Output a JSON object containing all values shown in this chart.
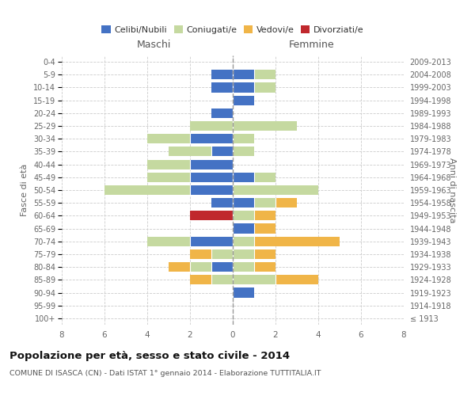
{
  "age_groups": [
    "100+",
    "95-99",
    "90-94",
    "85-89",
    "80-84",
    "75-79",
    "70-74",
    "65-69",
    "60-64",
    "55-59",
    "50-54",
    "45-49",
    "40-44",
    "35-39",
    "30-34",
    "25-29",
    "20-24",
    "15-19",
    "10-14",
    "5-9",
    "0-4"
  ],
  "year_labels": [
    "≤ 1913",
    "1914-1918",
    "1919-1923",
    "1924-1928",
    "1929-1933",
    "1934-1938",
    "1939-1943",
    "1944-1948",
    "1949-1953",
    "1954-1958",
    "1959-1963",
    "1964-1968",
    "1969-1973",
    "1974-1978",
    "1979-1983",
    "1984-1988",
    "1989-1993",
    "1994-1998",
    "1999-2003",
    "2004-2008",
    "2009-2013"
  ],
  "male": {
    "celibi": [
      0,
      0,
      0,
      0,
      1,
      0,
      2,
      0,
      0,
      1,
      2,
      2,
      2,
      1,
      2,
      0,
      1,
      0,
      1,
      1,
      0
    ],
    "coniugati": [
      0,
      0,
      0,
      1,
      1,
      1,
      2,
      0,
      0,
      0,
      4,
      2,
      2,
      2,
      2,
      2,
      0,
      0,
      0,
      0,
      0
    ],
    "vedovi": [
      0,
      0,
      0,
      1,
      1,
      1,
      0,
      0,
      0,
      0,
      0,
      0,
      0,
      0,
      0,
      0,
      0,
      0,
      0,
      0,
      0
    ],
    "divorziati": [
      0,
      0,
      0,
      0,
      0,
      0,
      0,
      0,
      2,
      0,
      0,
      0,
      0,
      0,
      0,
      0,
      0,
      0,
      0,
      0,
      0
    ]
  },
  "female": {
    "nubili": [
      0,
      0,
      1,
      0,
      0,
      0,
      0,
      1,
      0,
      1,
      0,
      1,
      0,
      0,
      0,
      0,
      0,
      1,
      1,
      1,
      0
    ],
    "coniugate": [
      0,
      0,
      0,
      2,
      1,
      1,
      1,
      0,
      1,
      1,
      4,
      1,
      0,
      1,
      1,
      3,
      0,
      0,
      1,
      1,
      0
    ],
    "vedove": [
      0,
      0,
      0,
      2,
      1,
      1,
      4,
      1,
      1,
      1,
      0,
      0,
      0,
      0,
      0,
      0,
      0,
      0,
      0,
      0,
      0
    ],
    "divorziate": [
      0,
      0,
      0,
      0,
      0,
      0,
      0,
      0,
      0,
      0,
      0,
      0,
      0,
      0,
      0,
      0,
      0,
      0,
      0,
      0,
      0
    ]
  },
  "colors": {
    "celibi_nubili": "#4472c4",
    "coniugati": "#c5d9a0",
    "vedovi": "#f0b548",
    "divorziati": "#c0282d"
  },
  "xlim": 8,
  "title": "Popolazione per età, sesso e stato civile - 2014",
  "subtitle": "COMUNE DI ISASCA (CN) - Dati ISTAT 1° gennaio 2014 - Elaborazione TUTTITALIA.IT",
  "xlabel_left": "Maschi",
  "xlabel_right": "Femmine",
  "ylabel_left": "Fasce di età",
  "ylabel_right": "Anni di nascita",
  "legend_labels": [
    "Celibi/Nubili",
    "Coniugati/e",
    "Vedovi/e",
    "Divorziati/e"
  ],
  "bg_color": "#ffffff",
  "grid_color": "#cccccc"
}
